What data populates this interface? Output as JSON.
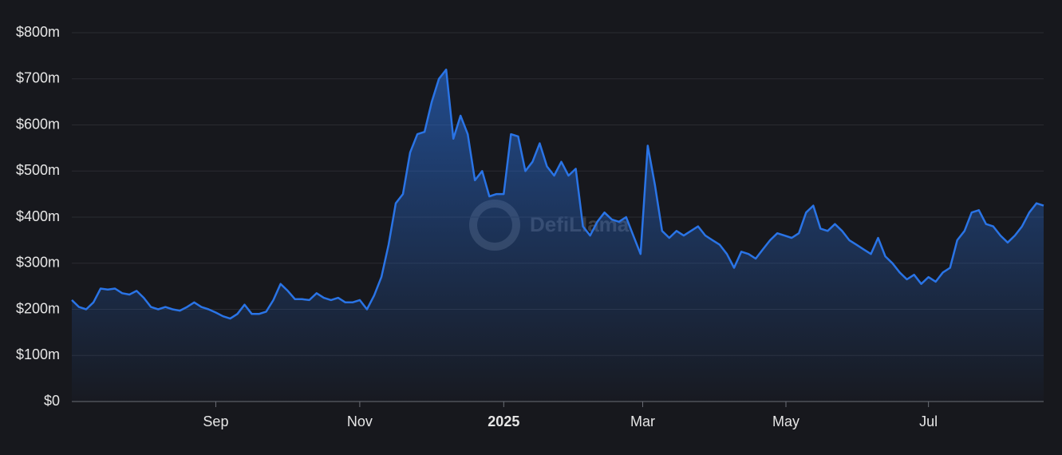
{
  "chart_data": {
    "type": "area",
    "watermark": "DefiLlama",
    "color": "#2a74e6",
    "grid": true,
    "values": [
      220000000,
      205000000,
      200000000,
      215000000,
      245000000,
      243000000,
      245000000,
      235000000,
      232000000,
      240000000,
      225000000,
      205000000,
      200000000,
      205000000,
      200000000,
      197000000,
      205000000,
      215000000,
      205000000,
      200000000,
      193000000,
      185000000,
      180000000,
      190000000,
      210000000,
      190000000,
      190000000,
      195000000,
      220000000,
      255000000,
      240000000,
      222000000,
      222000000,
      220000000,
      235000000,
      225000000,
      220000000,
      225000000,
      215000000,
      215000000,
      220000000,
      200000000,
      230000000,
      270000000,
      340000000,
      430000000,
      450000000,
      540000000,
      580000000,
      585000000,
      650000000,
      700000000,
      720000000,
      570000000,
      620000000,
      580000000,
      480000000,
      500000000,
      445000000,
      450000000,
      450000000,
      580000000,
      575000000,
      500000000,
      520000000,
      560000000,
      510000000,
      490000000,
      520000000,
      490000000,
      505000000,
      380000000,
      360000000,
      390000000,
      410000000,
      395000000,
      390000000,
      400000000,
      360000000,
      320000000,
      555000000,
      470000000,
      370000000,
      355000000,
      370000000,
      360000000,
      370000000,
      380000000,
      360000000,
      350000000,
      340000000,
      320000000,
      290000000,
      325000000,
      320000000,
      310000000,
      330000000,
      350000000,
      365000000,
      360000000,
      355000000,
      365000000,
      410000000,
      425000000,
      375000000,
      370000000,
      385000000,
      370000000,
      350000000,
      340000000,
      330000000,
      320000000,
      355000000,
      315000000,
      300000000,
      280000000,
      265000000,
      275000000,
      255000000,
      270000000,
      260000000,
      280000000,
      290000000,
      350000000,
      370000000,
      410000000,
      415000000,
      385000000,
      380000000,
      360000000,
      345000000,
      360000000,
      380000000,
      410000000,
      430000000,
      425000000
    ],
    "xlim": [
      0,
      135
    ],
    "xticks": [
      {
        "value": 20,
        "label": "Sep"
      },
      {
        "value": 40,
        "label": "Nov"
      },
      {
        "value": 60,
        "label": "2025"
      },
      {
        "value": 79.3,
        "label": "Mar"
      },
      {
        "value": 99.2,
        "label": "May"
      },
      {
        "value": 119,
        "label": "Jul"
      }
    ],
    "ylim": [
      0,
      800000000
    ],
    "yticks": [
      {
        "value": 0,
        "label": "$0"
      },
      {
        "value": 100000000,
        "label": "$100m"
      },
      {
        "value": 200000000,
        "label": "$200m"
      },
      {
        "value": 300000000,
        "label": "$300m"
      },
      {
        "value": 400000000,
        "label": "$400m"
      },
      {
        "value": 500000000,
        "label": "$500m"
      },
      {
        "value": 600000000,
        "label": "$600m"
      },
      {
        "value": 700000000,
        "label": "$700m"
      },
      {
        "value": 800000000,
        "label": "$800m"
      }
    ]
  }
}
